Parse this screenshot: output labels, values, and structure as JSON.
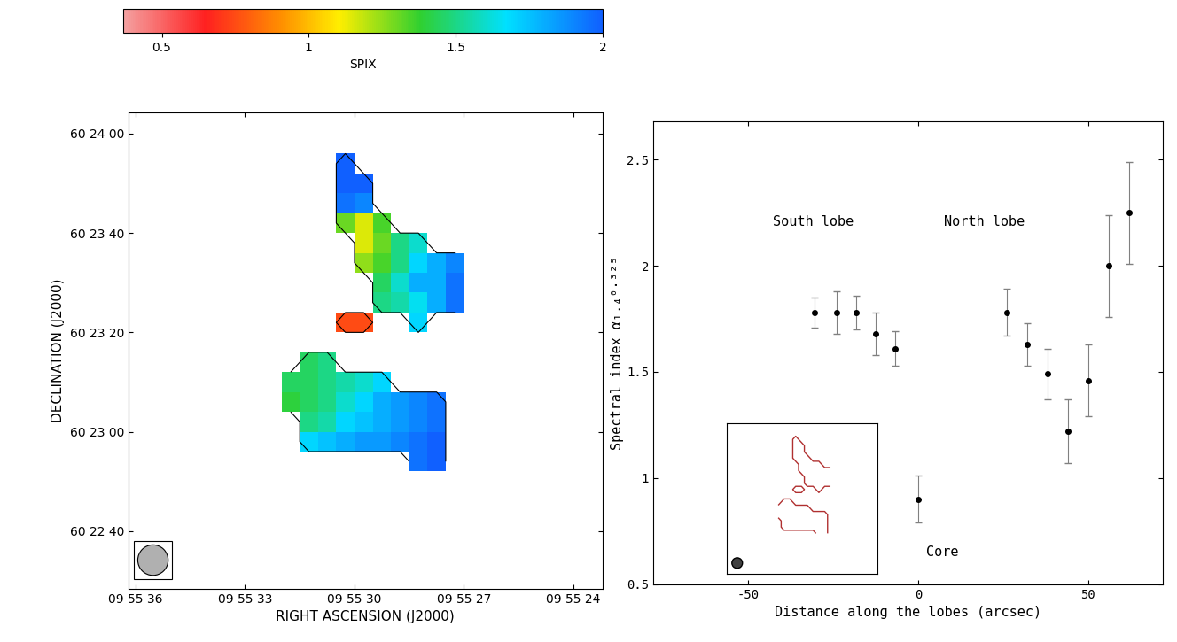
{
  "chart_data": [
    {
      "type": "heatmap",
      "xlabel": "RIGHT ASCENSION (J2000)",
      "ylabel": "DECLINATION (J2000)",
      "xlim": [
        36.2,
        23.2
      ],
      "ylim": [
        28.4,
        124.3
      ],
      "xticks": [
        {
          "value": 36,
          "label": "09 55 36"
        },
        {
          "value": 33,
          "label": "09 55 33"
        },
        {
          "value": 30,
          "label": "09 55 30"
        },
        {
          "value": 27,
          "label": "09 55 27"
        },
        {
          "value": 24,
          "label": "09 55 24"
        }
      ],
      "yticks": [
        {
          "value": 40,
          "label": "60 22 40"
        },
        {
          "value": 60,
          "label": "60 23 00"
        },
        {
          "value": 80,
          "label": "60 23 20"
        },
        {
          "value": 100,
          "label": "60 23 40"
        },
        {
          "value": 120,
          "label": "60 24 00"
        }
      ],
      "x_edges": [
        32.0,
        31.5,
        31.0,
        30.5,
        30.0,
        29.5,
        29.0,
        28.5,
        28.0,
        27.5,
        27.0
      ],
      "y_edges": [
        52,
        56,
        60,
        64,
        68,
        72,
        76,
        80,
        84,
        88,
        92,
        96,
        100,
        104,
        108,
        112,
        116,
        120
      ],
      "cells": [
        [
          null,
          null,
          null,
          null,
          null,
          null,
          null,
          1.95,
          2.0,
          null
        ],
        [
          null,
          1.7,
          1.75,
          1.8,
          1.85,
          1.85,
          1.9,
          1.95,
          2.0,
          null
        ],
        [
          null,
          1.5,
          1.55,
          1.7,
          1.75,
          1.8,
          1.85,
          1.9,
          1.95,
          null
        ],
        [
          1.4,
          1.45,
          1.5,
          1.6,
          1.7,
          1.8,
          1.85,
          1.9,
          1.95,
          null
        ],
        [
          1.45,
          1.45,
          1.5,
          1.55,
          1.6,
          1.7,
          null,
          null,
          null,
          null
        ],
        [
          null,
          1.45,
          1.5,
          null,
          null,
          null,
          null,
          null,
          null,
          null
        ],
        [
          null,
          null,
          null,
          null,
          null,
          null,
          null,
          null,
          null,
          null
        ],
        [
          null,
          null,
          null,
          0.75,
          0.75,
          null,
          null,
          1.7,
          null,
          null
        ],
        [
          null,
          null,
          null,
          null,
          null,
          1.5,
          1.55,
          1.65,
          1.8,
          1.95
        ],
        [
          null,
          null,
          null,
          null,
          null,
          1.45,
          1.6,
          1.8,
          1.8,
          1.95
        ],
        [
          null,
          null,
          null,
          null,
          1.25,
          1.35,
          1.5,
          1.7,
          1.8,
          1.9
        ],
        [
          null,
          null,
          null,
          null,
          1.15,
          1.3,
          1.5,
          1.6,
          null,
          null
        ],
        [
          null,
          null,
          null,
          1.3,
          1.15,
          1.35,
          null,
          null,
          null,
          null
        ],
        [
          null,
          null,
          null,
          1.95,
          1.9,
          null,
          null,
          null,
          null,
          null
        ],
        [
          null,
          null,
          null,
          2.0,
          2.0,
          null,
          null,
          null,
          null,
          null
        ],
        [
          null,
          null,
          null,
          2.0,
          null,
          null,
          null,
          null,
          null,
          null
        ],
        [
          null,
          null,
          null,
          null,
          null,
          null,
          null,
          null,
          null,
          null
        ]
      ],
      "colorbar": {
        "label": "SPIX",
        "range": [
          0.37,
          2
        ],
        "ticks": [
          0.5,
          1,
          1.5,
          2
        ]
      }
    },
    {
      "type": "scatter",
      "xlabel": "Distance along the lobes (arcsec)",
      "ylabel": "Spectral index α₁.₄⁰·³²⁵",
      "annotations": [
        "South lobe",
        "North lobe",
        "Core"
      ],
      "x": [
        -30.5,
        -24.0,
        -18.3,
        -12.5,
        -6.8,
        0,
        26.0,
        32.0,
        38.0,
        44.0,
        50.0,
        56.0,
        62.0
      ],
      "values": [
        1.78,
        1.78,
        1.78,
        1.68,
        1.61,
        0.9,
        1.78,
        1.63,
        1.49,
        1.22,
        1.46,
        2.0,
        2.25
      ],
      "errors": [
        0.07,
        0.1,
        0.08,
        0.1,
        0.08,
        0.11,
        0.11,
        0.1,
        0.12,
        0.15,
        0.17,
        0.24,
        0.24
      ],
      "color": "#000000",
      "marker": "o",
      "xlim": [
        -78,
        72
      ],
      "ylim": [
        0.5,
        2.68
      ],
      "xticks": [
        -50,
        0,
        50
      ],
      "yticks": [
        0.5,
        1,
        1.5,
        2,
        2.5
      ]
    }
  ]
}
